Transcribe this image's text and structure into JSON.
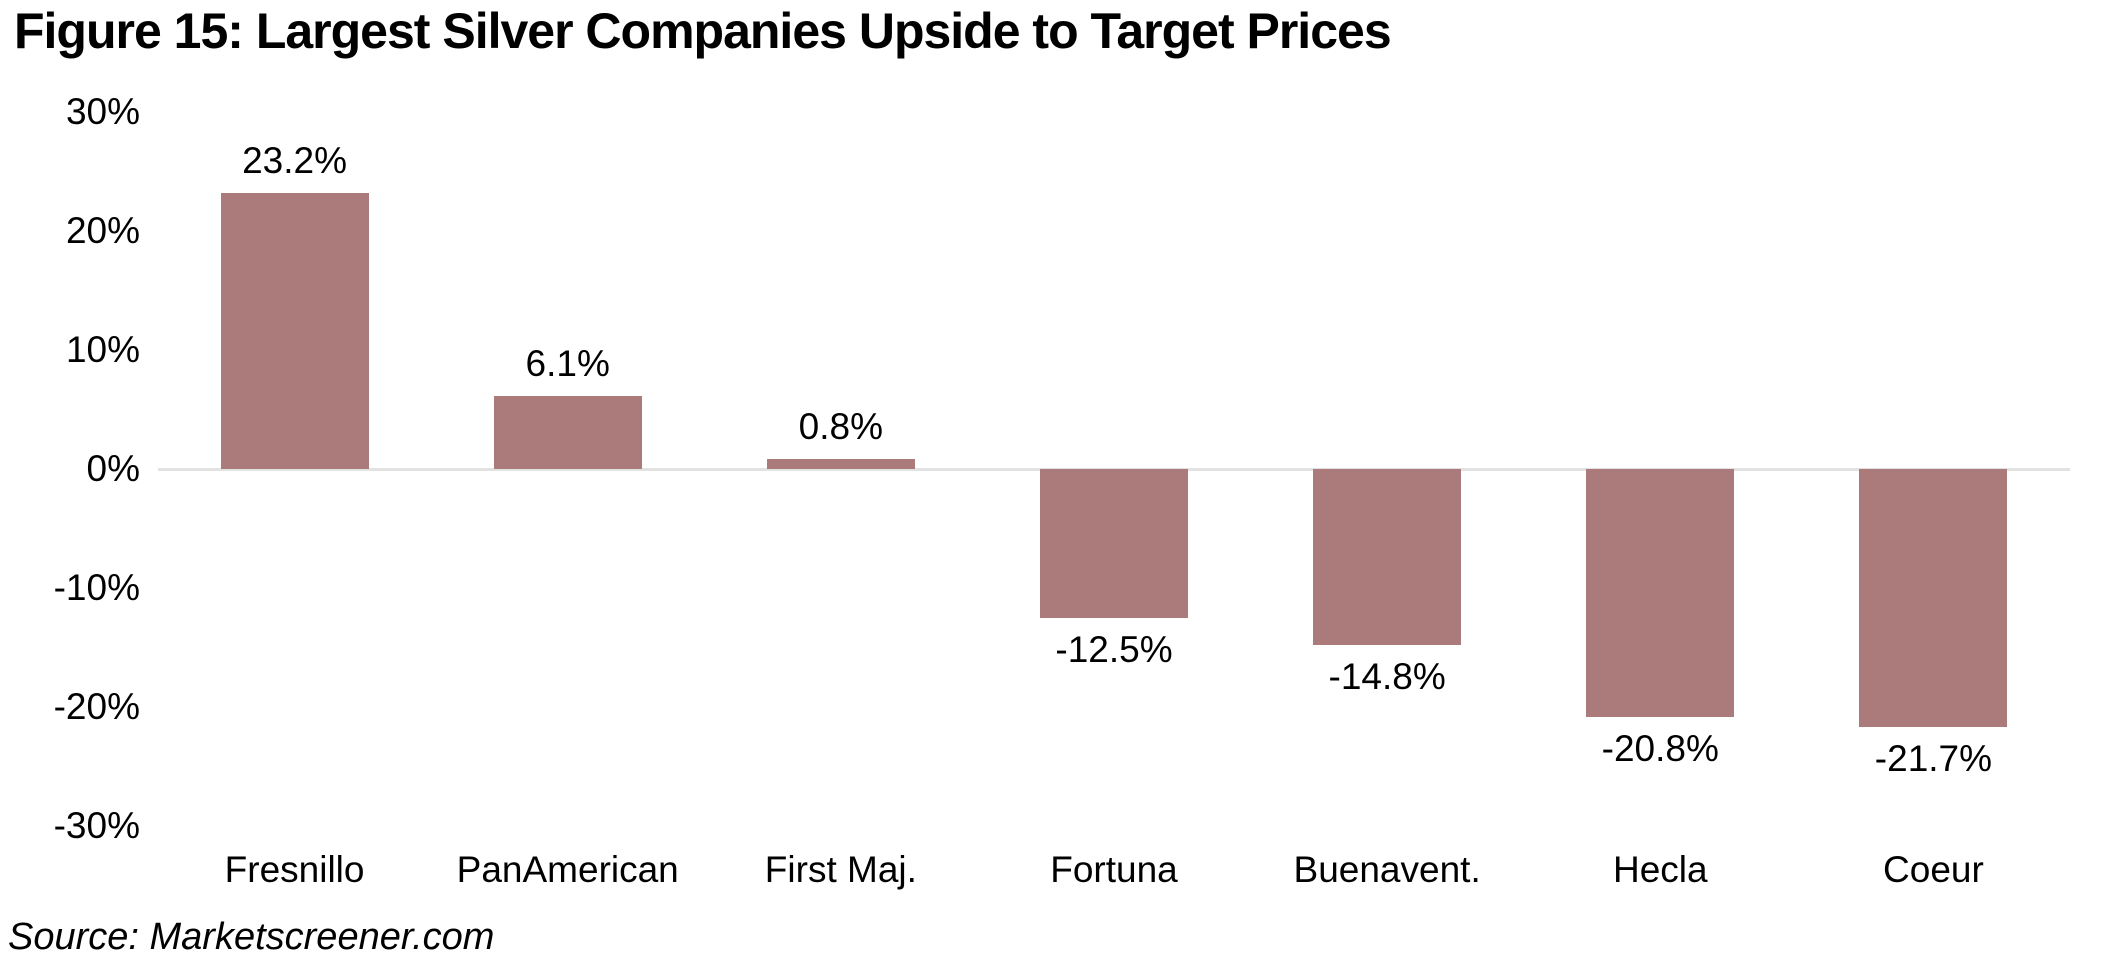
{
  "title": "Figure 15: Largest Silver Companies Upside to Target Prices",
  "source": "Source: Marketscreener.com",
  "colors": {
    "bar": "#ab7b7b",
    "gridline": "#e2e2e2",
    "text": "#000000",
    "background": "#ffffff"
  },
  "chart_data": {
    "type": "bar",
    "title": "Figure 15: Largest Silver Companies Upside to Target Prices",
    "categories": [
      "Fresnillo",
      "PanAmerican",
      "First Maj.",
      "Fortuna",
      "Buenavent.",
      "Hecla",
      "Coeur"
    ],
    "values": [
      23.2,
      6.1,
      0.8,
      -12.5,
      -14.8,
      -20.8,
      -21.7
    ],
    "value_labels": [
      "23.2%",
      "6.1%",
      "0.8%",
      "-12.5%",
      "-14.8%",
      "-20.8%",
      "-21.7%"
    ],
    "xlabel": "",
    "ylabel": "",
    "ylim": [
      -30,
      30
    ],
    "yticks": [
      30,
      20,
      10,
      0,
      -10,
      -20,
      -30
    ],
    "ytick_labels": [
      "30%",
      "20%",
      "10%",
      "0%",
      "-10%",
      "-20%",
      "-30%"
    ],
    "grid": "zero-line-only",
    "legend": "none",
    "bar_color": "#ab7b7b",
    "source_note": "Source: Marketscreener.com"
  }
}
